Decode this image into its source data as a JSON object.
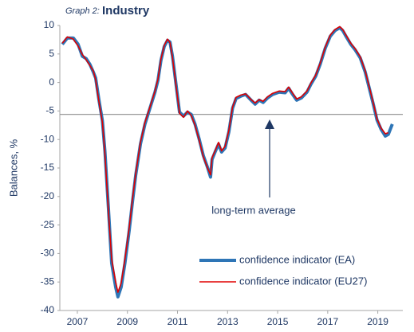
{
  "chart_data": {
    "type": "line",
    "graph_label": "Graph 2:",
    "title": "Industry",
    "y_label": "Balances, %",
    "x": [
      2006.4,
      2006.6,
      2006.84,
      2007.03,
      2007.2,
      2007.35,
      2007.5,
      2007.64,
      2007.73,
      2007.86,
      2008.0,
      2008.1,
      2008.24,
      2008.37,
      2008.53,
      2008.62,
      2008.75,
      2008.9,
      2009.07,
      2009.2,
      2009.33,
      2009.52,
      2009.7,
      2009.9,
      2010.1,
      2010.22,
      2010.34,
      2010.47,
      2010.6,
      2010.7,
      2010.8,
      2010.92,
      2011.08,
      2011.24,
      2011.4,
      2011.55,
      2011.7,
      2011.87,
      2012.03,
      2012.2,
      2012.32,
      2012.38,
      2012.5,
      2012.64,
      2012.76,
      2012.9,
      2013.05,
      2013.2,
      2013.34,
      2013.53,
      2013.72,
      2013.94,
      2014.1,
      2014.26,
      2014.42,
      2014.6,
      2014.8,
      2015.06,
      2015.3,
      2015.44,
      2015.6,
      2015.76,
      2015.95,
      2016.17,
      2016.33,
      2016.52,
      2016.7,
      2016.9,
      2017.1,
      2017.29,
      2017.48,
      2017.6,
      2017.73,
      2017.92,
      2018.1,
      2018.3,
      2018.5,
      2018.66,
      2018.82,
      2018.97,
      2019.13,
      2019.3,
      2019.42,
      2019.58
    ],
    "series": [
      {
        "name": "confidence indicator (EA)",
        "color": "#2e75b6",
        "width": 4,
        "values": [
          6.7,
          7.8,
          7.8,
          6.7,
          4.6,
          4.2,
          3.2,
          1.8,
          0.8,
          -3,
          -6.7,
          -12,
          -22,
          -31.7,
          -35.9,
          -37.6,
          -35.9,
          -31.7,
          -26,
          -21,
          -16.3,
          -10.8,
          -7.3,
          -4.5,
          -1.7,
          0.4,
          3.9,
          6.3,
          7.4,
          7.1,
          4.6,
          0.4,
          -5.2,
          -5.9,
          -5.2,
          -5.6,
          -7.3,
          -10,
          -12.8,
          -14.9,
          -16.6,
          -13.5,
          -12.2,
          -10.8,
          -12.2,
          -11.5,
          -8.7,
          -4.5,
          -2.8,
          -2.4,
          -2.1,
          -3.1,
          -3.8,
          -3.1,
          -3.5,
          -2.7,
          -2.1,
          -1.7,
          -1.8,
          -1,
          -2.1,
          -3.1,
          -2.7,
          -1.7,
          -0.3,
          1.1,
          3.2,
          6,
          8.1,
          9.1,
          9.6,
          9.1,
          8.1,
          6.7,
          5.7,
          4.3,
          1.8,
          -1,
          -3.8,
          -6.6,
          -8.2,
          -9.4,
          -9.1,
          -7.3
        ]
      },
      {
        "name": "confidence indicator (EU27)",
        "color": "#e00000",
        "width": 1.6,
        "values": [
          6.9,
          8.0,
          7.6,
          6.4,
          4.9,
          4.0,
          3.0,
          2.0,
          0.5,
          -3.3,
          -7.0,
          -12.5,
          -22.5,
          -31.0,
          -35.0,
          -36.8,
          -35.2,
          -31.0,
          -25.5,
          -20.5,
          -16.0,
          -10.5,
          -7.0,
          -4.3,
          -1.5,
          0.6,
          4.1,
          6.5,
          7.6,
          7.0,
          4.4,
          0.2,
          -5.4,
          -6.1,
          -5.0,
          -5.8,
          -7.5,
          -10.2,
          -13.0,
          -15.0,
          -16.2,
          -13.2,
          -12.0,
          -10.5,
          -12.0,
          -11.2,
          -8.4,
          -4.3,
          -2.6,
          -2.2,
          -2.0,
          -3.0,
          -3.6,
          -3.0,
          -3.3,
          -2.5,
          -1.9,
          -1.5,
          -1.6,
          -0.8,
          -1.9,
          -2.9,
          -2.5,
          -1.5,
          -0.1,
          1.3,
          3.4,
          6.2,
          8.3,
          9.3,
          9.8,
          9.3,
          8.3,
          6.9,
          5.9,
          4.5,
          2.0,
          -0.8,
          -3.6,
          -6.4,
          -8.0,
          -9.0,
          -8.8,
          null
        ]
      }
    ],
    "xlim": [
      2006.3,
      2020.0
    ],
    "ylim": [
      -40,
      10
    ],
    "xticks": [
      2007,
      2009,
      2011,
      2013,
      2015,
      2017,
      2019
    ],
    "yticks": [
      10,
      5,
      0,
      -5,
      -10,
      -15,
      -20,
      -25,
      -30,
      -35,
      -40
    ],
    "reference_line": {
      "value": -5.6,
      "label": "long-term average"
    }
  }
}
